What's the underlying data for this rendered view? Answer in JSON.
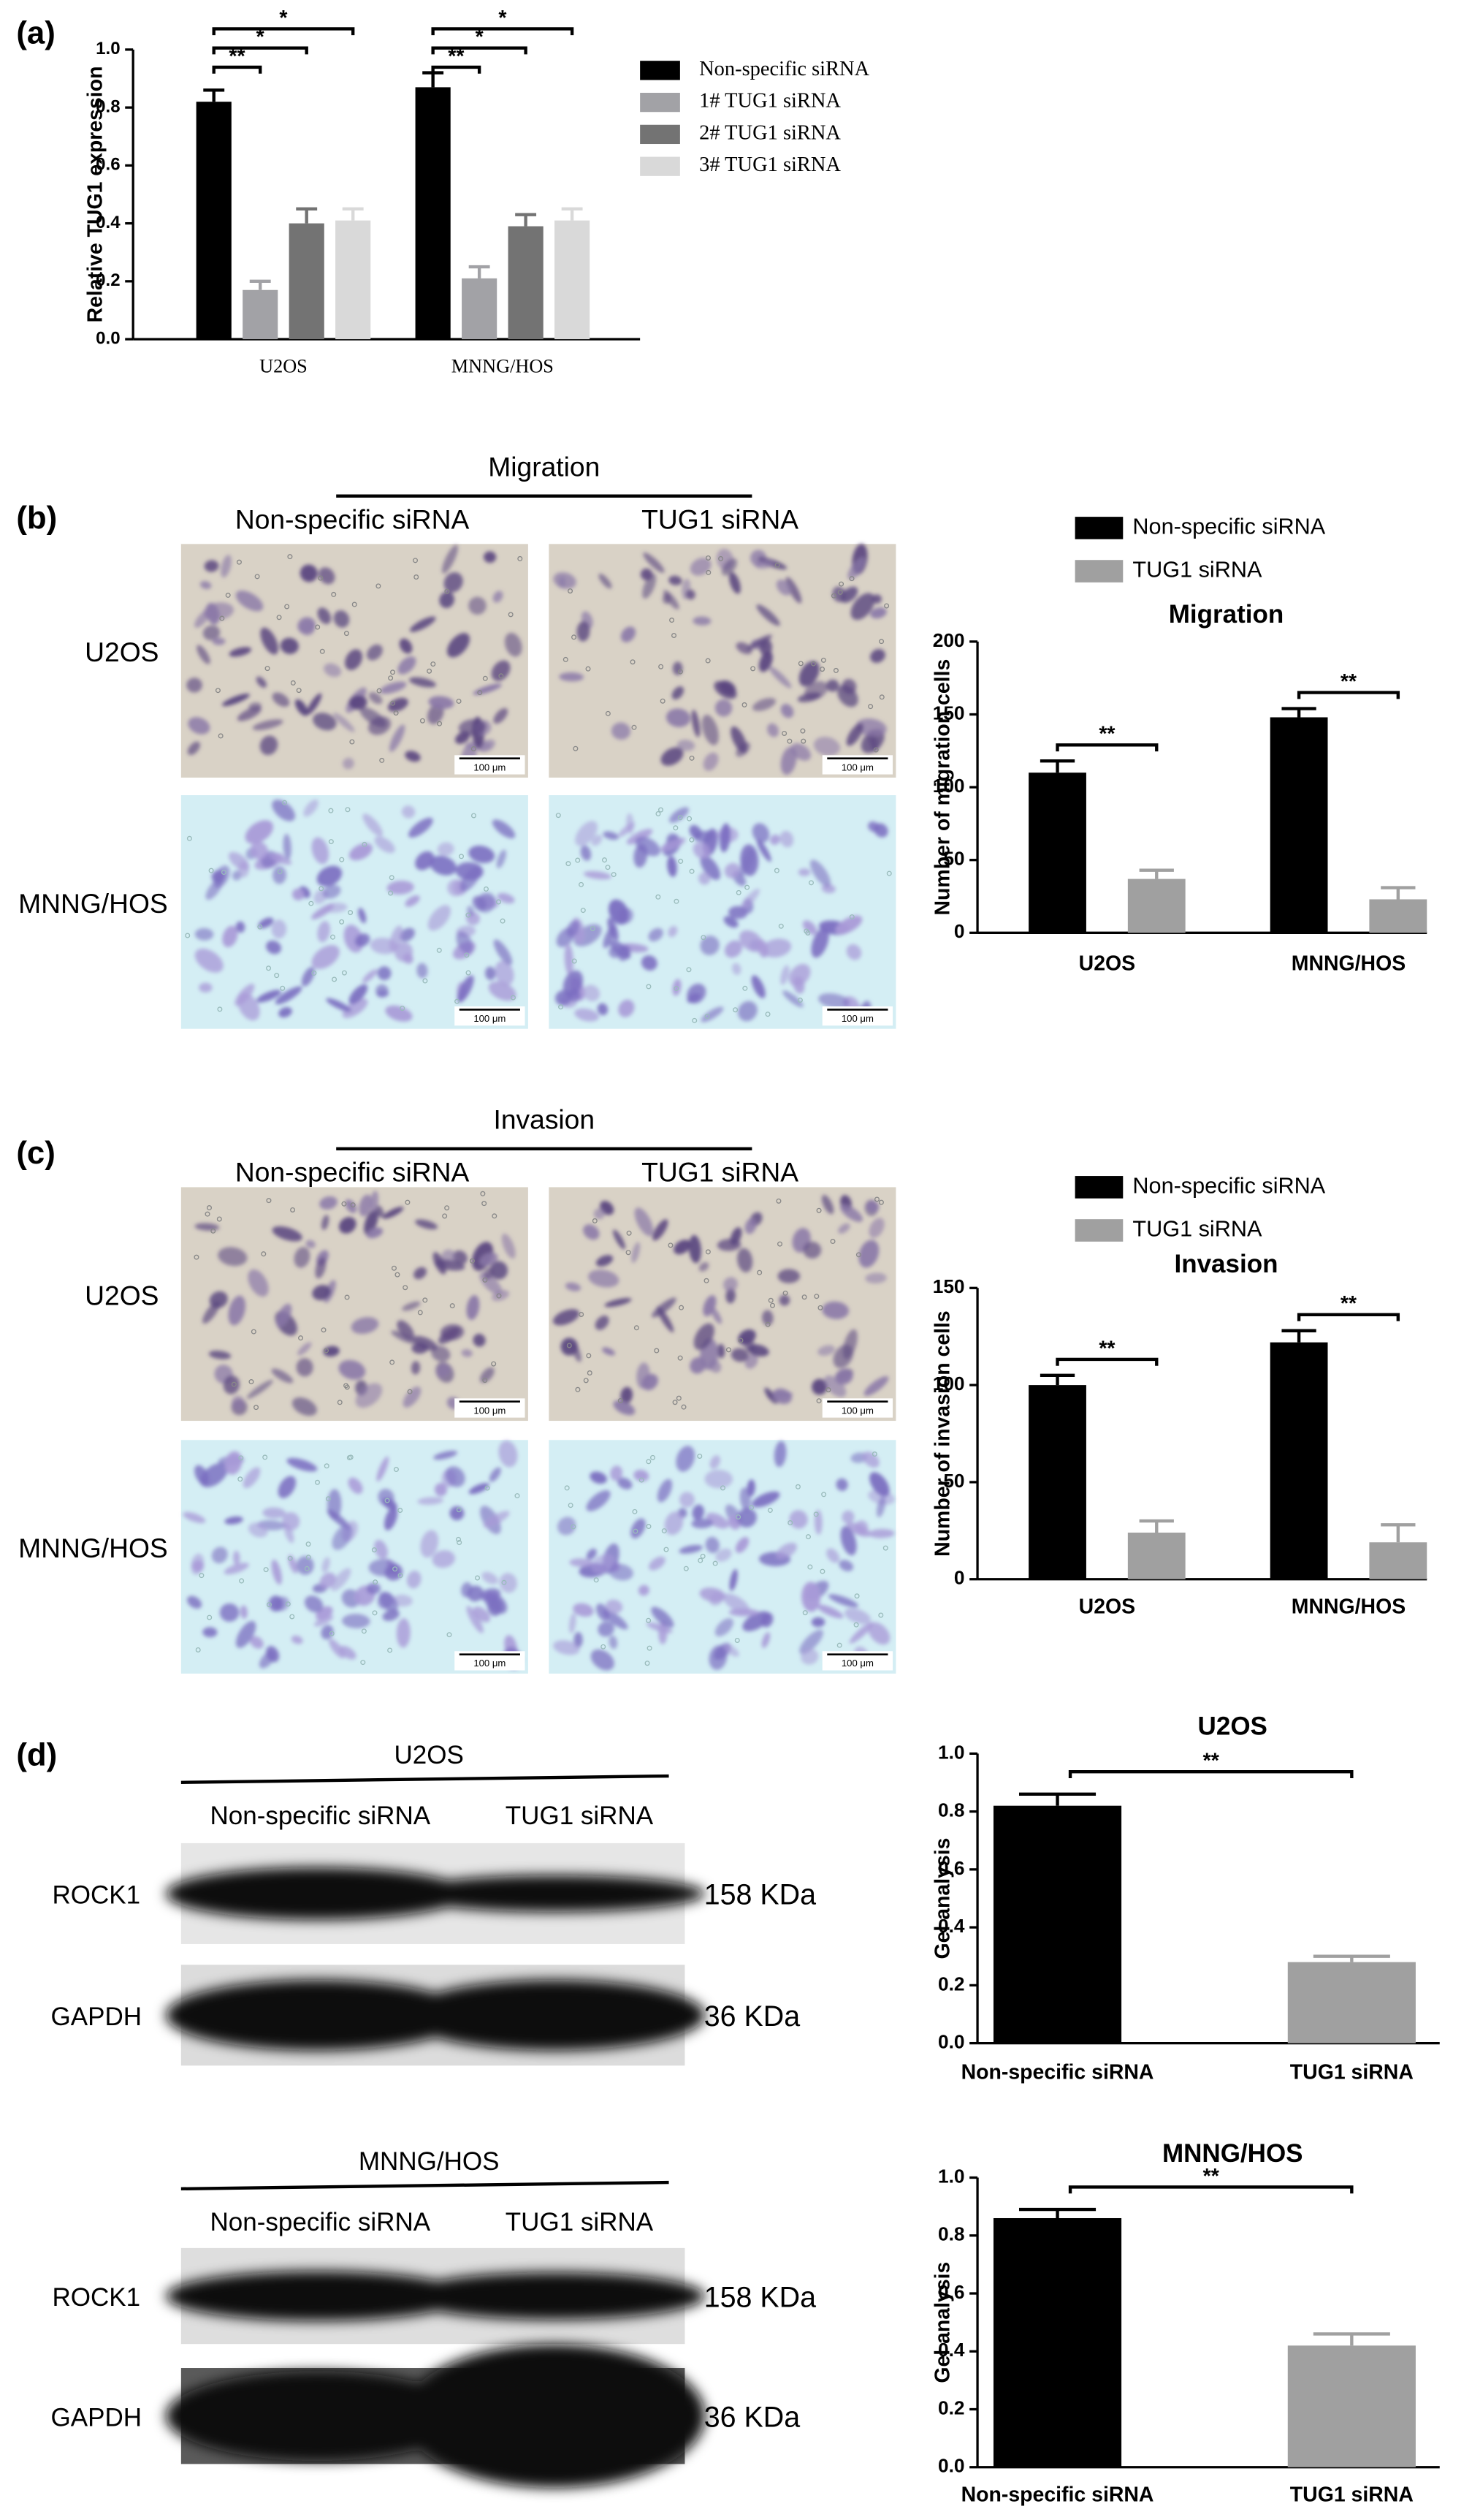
{
  "chart_data": [
    {
      "type": "bar",
      "ylabel": "Relative TUG1 expression",
      "categories": [
        "U2OS",
        "MNNG/HOS"
      ],
      "series": [
        {
          "name": "Non-specific siRNA",
          "color": "#000000",
          "values": [
            0.82,
            0.87
          ],
          "errors": [
            0.04,
            0.05
          ]
        },
        {
          "name": "1# TUG1 siRNA",
          "color": "#a2a2a6",
          "values": [
            0.17,
            0.21
          ],
          "errors": [
            0.03,
            0.04
          ]
        },
        {
          "name": "2# TUG1 siRNA",
          "color": "#737373",
          "values": [
            0.4,
            0.39
          ],
          "errors": [
            0.05,
            0.04
          ]
        },
        {
          "name": "3# TUG1 siRNA",
          "color": "#d9d9d9",
          "values": [
            0.41,
            0.41
          ],
          "errors": [
            0.04,
            0.04
          ]
        }
      ],
      "ylim": [
        0,
        1.0
      ],
      "yticks": [
        {
          "value": 0,
          "label": "0.0"
        },
        {
          "value": 0.2,
          "label": "0.2"
        },
        {
          "value": 0.4,
          "label": "0.4"
        },
        {
          "value": 0.6,
          "label": "0.6"
        },
        {
          "value": 0.8,
          "label": "0.8"
        },
        {
          "value": 1.0,
          "label": "1.0"
        }
      ],
      "annotations": [
        "**",
        "*",
        "*",
        "**",
        "*",
        "*"
      ]
    },
    {
      "type": "bar",
      "title": "Migration",
      "ylabel": "Number of migration cells",
      "categories": [
        "U2OS",
        "MNNG/HOS"
      ],
      "series": [
        {
          "name": "Non-specific siRNA",
          "color": "#000000",
          "values": [
            110,
            148
          ],
          "errors": [
            8,
            6
          ]
        },
        {
          "name": "TUG1 siRNA",
          "color": "#a0a0a0",
          "values": [
            37,
            23
          ],
          "errors": [
            6,
            8
          ]
        }
      ],
      "ylim": [
        0,
        200
      ],
      "yticks": [
        0,
        50,
        100,
        150,
        200
      ],
      "annotations": [
        "**",
        "**"
      ]
    },
    {
      "type": "bar",
      "title": "Invasion",
      "ylabel": "Number of invasion cells",
      "categories": [
        "U2OS",
        "MNNG/HOS"
      ],
      "series": [
        {
          "name": "Non-specific siRNA",
          "color": "#000000",
          "values": [
            100,
            122
          ],
          "errors": [
            5,
            6
          ]
        },
        {
          "name": "TUG1 siRNA",
          "color": "#a0a0a0",
          "values": [
            24,
            19
          ],
          "errors": [
            6,
            9
          ]
        }
      ],
      "ylim": [
        0,
        150
      ],
      "yticks": [
        0,
        50,
        100,
        150
      ],
      "annotations": [
        "**",
        "**"
      ]
    },
    {
      "type": "bar",
      "title": "U2OS",
      "ylabel": "Gel analysis",
      "categories": [
        "Non-specific siRNA",
        "TUG1 siRNA"
      ],
      "values": [
        0.82,
        0.28
      ],
      "errors": [
        0.04,
        0.02
      ],
      "colors": [
        "#000000",
        "#a0a0a0"
      ],
      "ylim": [
        0,
        1.0
      ],
      "yticks": [
        {
          "value": 0,
          "label": "0.0"
        },
        {
          "value": 0.2,
          "label": "0.2"
        },
        {
          "value": 0.4,
          "label": "0.4"
        },
        {
          "value": 0.6,
          "label": "0.6"
        },
        {
          "value": 0.8,
          "label": "0.8"
        },
        {
          "value": 1.0,
          "label": "1.0"
        }
      ],
      "annotations": [
        "**"
      ]
    },
    {
      "type": "bar",
      "title": "MNNG/HOS",
      "ylabel": "Gel analysis",
      "categories": [
        "Non-specific siRNA",
        "TUG1 siRNA"
      ],
      "values": [
        0.86,
        0.42
      ],
      "errors": [
        0.03,
        0.04
      ],
      "colors": [
        "#000000",
        "#a0a0a0"
      ],
      "ylim": [
        0,
        1.0
      ],
      "yticks": [
        {
          "value": 0,
          "label": "0.0"
        },
        {
          "value": 0.2,
          "label": "0.2"
        },
        {
          "value": 0.4,
          "label": "0.4"
        },
        {
          "value": 0.6,
          "label": "0.6"
        },
        {
          "value": 0.8,
          "label": "0.8"
        },
        {
          "value": 1.0,
          "label": "1.0"
        }
      ],
      "annotations": [
        "**"
      ]
    }
  ],
  "figure": {
    "panel_labels": [
      "(a)",
      "(b)",
      "(c)",
      "(d)"
    ],
    "assays": [
      {
        "heading": "Migration",
        "columns": [
          "Non-specific siRNA",
          "TUG1 siRNA"
        ],
        "rows": [
          "U2OS",
          "MNNG/HOS"
        ],
        "scale_bar": "100 μm"
      },
      {
        "heading": "Invasion",
        "columns": [
          "Non-specific siRNA",
          "TUG1 siRNA"
        ],
        "rows": [
          "U2OS",
          "MNNG/HOS"
        ],
        "scale_bar": "100 μm"
      }
    ],
    "blots": [
      {
        "heading": "U2OS",
        "columns": [
          "Non-specific siRNA",
          "TUG1 siRNA"
        ],
        "rows": [
          {
            "label": "ROCK1",
            "size": "158 KDa"
          },
          {
            "label": "GAPDH",
            "size": "36 KDa"
          }
        ]
      },
      {
        "heading": "MNNG/HOS",
        "columns": [
          "Non-specific siRNA",
          "TUG1 siRNA"
        ],
        "rows": [
          {
            "label": "ROCK1",
            "size": "158 KDa"
          },
          {
            "label": "GAPDH",
            "size": "36 KDa"
          }
        ]
      }
    ]
  }
}
